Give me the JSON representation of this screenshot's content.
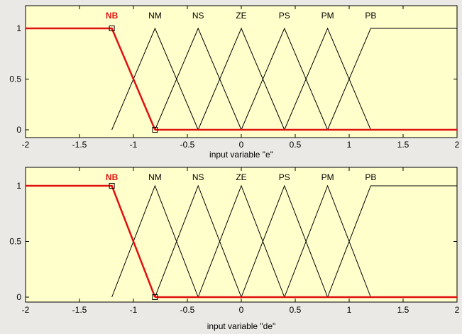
{
  "colors": {
    "plot_background": "#ffffcc",
    "mf_line": "#000000",
    "selected_mf": "#e01010",
    "window_background": "#ebe9e5"
  },
  "plots": [
    {
      "variable_label": "input variable \"e\"",
      "selected_mf": "NB",
      "x_range": [
        -2,
        2
      ],
      "y_range": [
        0,
        1
      ],
      "x_ticks": [
        "-2",
        "-1.5",
        "-1",
        "-0.5",
        "0",
        "0.5",
        "1",
        "1.5",
        "2"
      ],
      "y_ticks": [
        "0",
        "0.5",
        "1"
      ],
      "membership_functions": [
        {
          "name": "NB",
          "type": "trapmf",
          "params": [
            -2,
            -2,
            -1.2,
            -0.8
          ]
        },
        {
          "name": "NM",
          "type": "trimf",
          "params": [
            -1.2,
            -0.8,
            -0.4
          ]
        },
        {
          "name": "NS",
          "type": "trimf",
          "params": [
            -0.8,
            -0.4,
            0
          ]
        },
        {
          "name": "ZE",
          "type": "trimf",
          "params": [
            -0.4,
            0,
            0.4
          ]
        },
        {
          "name": "PS",
          "type": "trimf",
          "params": [
            0,
            0.4,
            0.8
          ]
        },
        {
          "name": "PM",
          "type": "trimf",
          "params": [
            0.4,
            0.8,
            1.2
          ]
        },
        {
          "name": "PB",
          "type": "trapmf",
          "params": [
            0.8,
            1.2,
            2,
            2
          ]
        }
      ]
    },
    {
      "variable_label": "input variable \"de\"",
      "selected_mf": "NB",
      "x_range": [
        -2,
        2
      ],
      "y_range": [
        0,
        1
      ],
      "x_ticks": [
        "-2",
        "-1.5",
        "-1",
        "-0.5",
        "0",
        "0.5",
        "1",
        "1.5",
        "2"
      ],
      "y_ticks": [
        "0",
        "0.5",
        "1"
      ],
      "membership_functions": [
        {
          "name": "NB",
          "type": "trapmf",
          "params": [
            -2,
            -2,
            -1.2,
            -0.8
          ]
        },
        {
          "name": "NM",
          "type": "trimf",
          "params": [
            -1.2,
            -0.8,
            -0.4
          ]
        },
        {
          "name": "NS",
          "type": "trimf",
          "params": [
            -0.8,
            -0.4,
            0
          ]
        },
        {
          "name": "ZE",
          "type": "trimf",
          "params": [
            -0.4,
            0,
            0.4
          ]
        },
        {
          "name": "PS",
          "type": "trimf",
          "params": [
            0,
            0.4,
            0.8
          ]
        },
        {
          "name": "PM",
          "type": "trimf",
          "params": [
            0.4,
            0.8,
            1.2
          ]
        },
        {
          "name": "PB",
          "type": "trapmf",
          "params": [
            0.8,
            1.2,
            2,
            2
          ]
        }
      ]
    }
  ]
}
